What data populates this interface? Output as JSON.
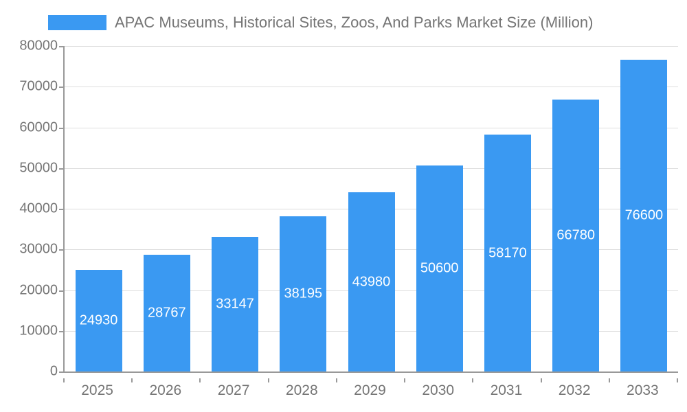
{
  "chart_data": {
    "type": "bar",
    "title": "APAC Museums, Historical Sites, Zoos, And Parks Market Size (Million)",
    "categories": [
      "2025",
      "2026",
      "2027",
      "2028",
      "2029",
      "2030",
      "2031",
      "2032",
      "2033"
    ],
    "values": [
      24930,
      28767,
      33147,
      38195,
      43980,
      50600,
      58170,
      66780,
      76600
    ],
    "xlabel": "",
    "ylabel": "",
    "ylim": [
      0,
      80000
    ],
    "ytick_step": 10000,
    "ytick_labels": [
      "0",
      "10000",
      "20000",
      "30000",
      "40000",
      "50000",
      "60000",
      "70000",
      "80000"
    ],
    "grid": true,
    "legend_position": "top-left",
    "colors": {
      "bar": "#3a99f2",
      "bar_value_label": "#ffffff",
      "axis_text": "#757575",
      "gridline": "#dddddd",
      "axis_line": "#999999",
      "background": "#ffffff"
    }
  }
}
